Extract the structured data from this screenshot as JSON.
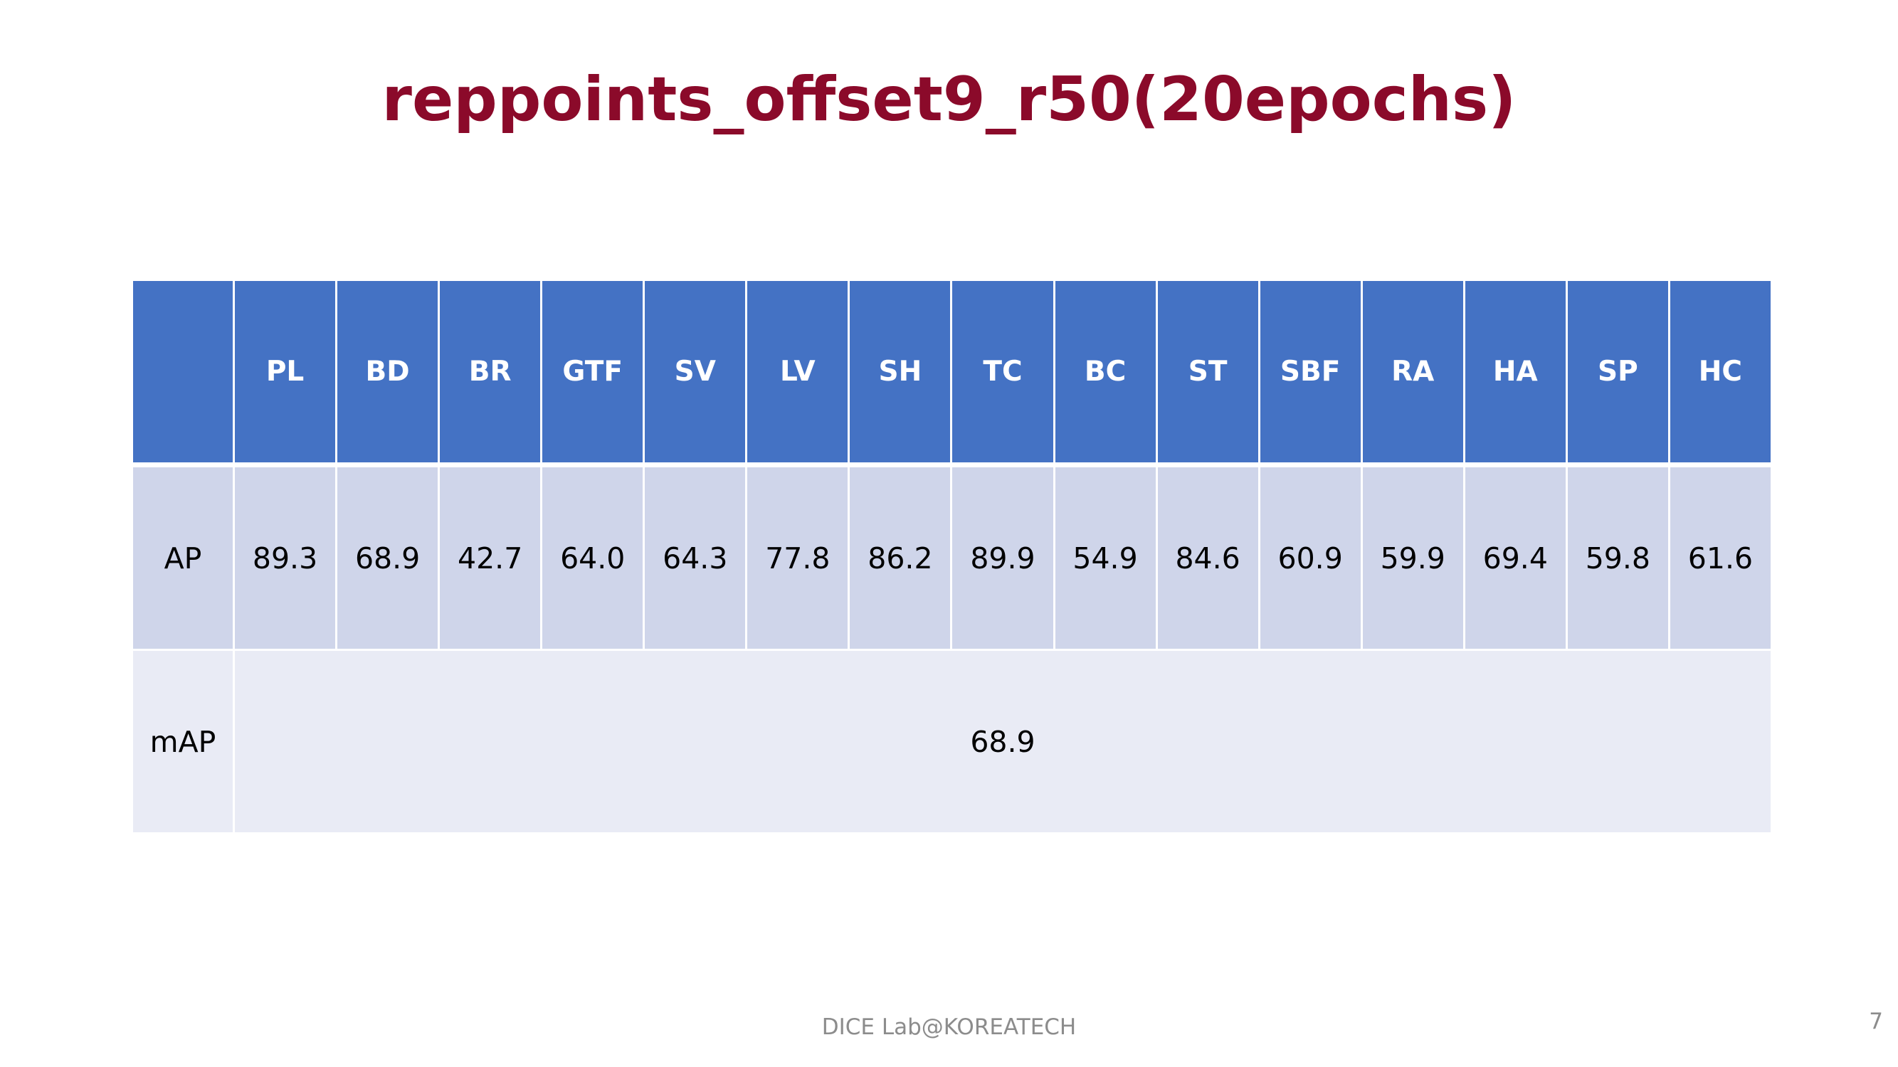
{
  "title": "reppoints_offset9_r50(20epochs)",
  "table": {
    "corner": "",
    "columns": [
      "PL",
      "BD",
      "BR",
      "GTF",
      "SV",
      "LV",
      "SH",
      "TC",
      "BC",
      "ST",
      "SBF",
      "RA",
      "HA",
      "SP",
      "HC"
    ],
    "ap_row": {
      "label": "AP",
      "values": [
        "89.3",
        "68.9",
        "42.7",
        "64.0",
        "64.3",
        "77.8",
        "86.2",
        "89.9",
        "54.9",
        "84.6",
        "60.9",
        "59.9",
        "69.4",
        "59.8",
        "61.6"
      ]
    },
    "map_row": {
      "label": "mAP",
      "value": "68.9"
    }
  },
  "footer": "DICE  Lab@KOREATECH",
  "page_number": "7",
  "colors": {
    "title": "#8b0a2a",
    "header_bg": "#4472c4",
    "ap_row_bg": "#cfd5ea",
    "map_row_bg": "#e9ebf5"
  }
}
